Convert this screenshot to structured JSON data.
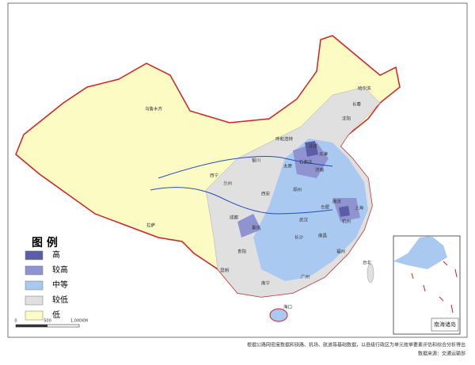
{
  "legend": {
    "title": "图 例",
    "items": [
      {
        "label": "高",
        "color": "#5b5ea6"
      },
      {
        "label": "较高",
        "color": "#8f93d0"
      },
      {
        "label": "中等",
        "color": "#a9c9f0"
      },
      {
        "label": "较低",
        "color": "#e0e0e0"
      },
      {
        "label": "低",
        "color": "#fdfbc4"
      }
    ]
  },
  "scale_bar": {
    "labels": [
      "0",
      "500",
      "1,000KM"
    ]
  },
  "cities": [
    "乌鲁木齐",
    "哈尔滨",
    "长春",
    "沈阳",
    "呼和浩特",
    "北京",
    "天津",
    "石家庄",
    "太原",
    "银川",
    "济南",
    "西宁",
    "兰州",
    "郑州",
    "西安",
    "南京",
    "合肥",
    "上海",
    "杭州",
    "武汉",
    "成都",
    "重庆",
    "长沙",
    "南昌",
    "福州",
    "拉萨",
    "昆明",
    "贵阳",
    "南宁",
    "广州",
    "台北",
    "海口"
  ],
  "inset": {
    "title": "南海诸岛"
  },
  "footnote": [
    "根据公路网密度数据和铁路、机场、航道等基础数据，以县级行政区为单元按单要素评估和综合分析得出",
    "数据来源：交通运输部"
  ]
}
